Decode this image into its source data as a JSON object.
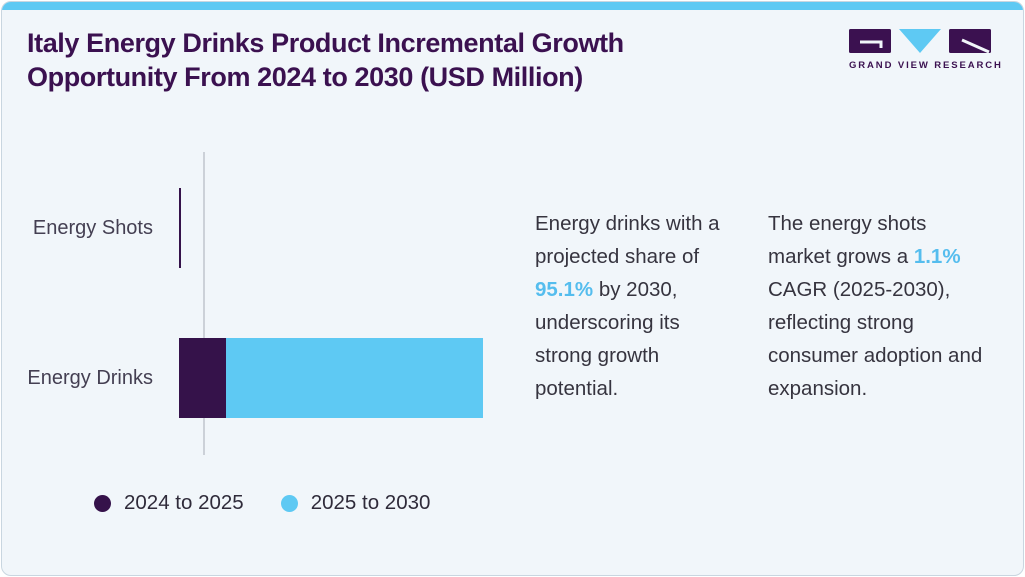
{
  "header": {
    "title": "Italy Energy Drinks Product Incremental Growth Opportunity From 2024 to 2030 (USD Million)",
    "logo_text": "GRAND VIEW RESEARCH"
  },
  "chart_data": {
    "type": "bar",
    "orientation": "horizontal",
    "stacked": true,
    "title": "Italy Energy Drinks Product Incremental Growth Opportunity From 2024 to 2030 (USD Million)",
    "categories": [
      "Energy Shots",
      "Energy Drinks"
    ],
    "series": [
      {
        "name": "2024 to 2025",
        "color": "#35124a",
        "values": [
          0.8,
          15.5
        ]
      },
      {
        "name": "2025 to 2030",
        "color": "#5ec9f3",
        "values": [
          0,
          84.5
        ]
      }
    ],
    "units": "relative bar width, % of longest bar (numeric axis not labeled in source)",
    "xlabel": "",
    "ylabel": "",
    "grid": false,
    "legend_position": "bottom"
  },
  "insights": [
    {
      "pre": "Energy drinks with a projected share of ",
      "highlight": "95.1%",
      "post": " by 2030, underscoring its strong growth potential."
    },
    {
      "pre": "The energy shots market grows a ",
      "highlight": "1.1%",
      "post": " CAGR (2025-2030), reflecting strong consumer adoption and expansion."
    }
  ],
  "colors": {
    "accent_blue": "#5ec9f3",
    "brand_purple": "#3b1150",
    "bar_purple": "#35124a",
    "bar_blue": "#5ec9f3",
    "highlight_blue": "#55bdee",
    "card_background": "#f1f6fa"
  }
}
